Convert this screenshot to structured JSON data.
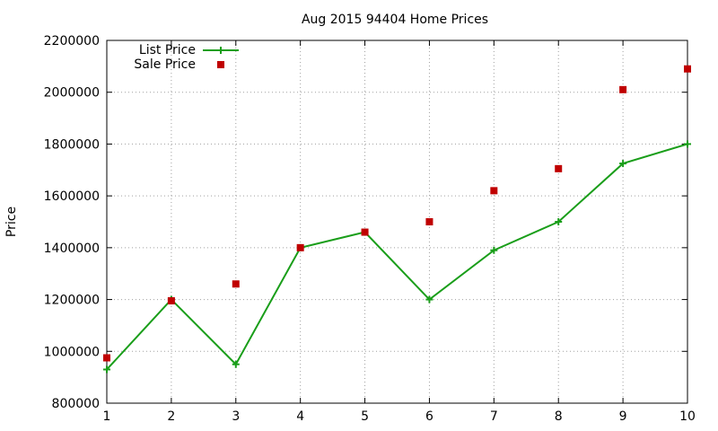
{
  "chart_data": {
    "type": "line",
    "title": "Aug 2015 94404 Home Prices",
    "xlabel": "",
    "ylabel": "Price",
    "x": [
      1,
      2,
      3,
      4,
      5,
      6,
      7,
      8,
      9,
      10
    ],
    "xlim": [
      1,
      10
    ],
    "ylim": [
      800000,
      2200000
    ],
    "xticks": [
      1,
      2,
      3,
      4,
      5,
      6,
      7,
      8,
      9,
      10
    ],
    "yticks": [
      800000,
      1000000,
      1200000,
      1400000,
      1600000,
      1800000,
      2000000,
      2200000
    ],
    "grid": true,
    "legend_position": "top-left",
    "series": [
      {
        "name": "List Price",
        "style": "line-with-plus-markers",
        "color": "#1a9e1a",
        "values": [
          930000,
          1200000,
          950000,
          1400000,
          1460000,
          1200000,
          1390000,
          1500000,
          1725000,
          1800000
        ]
      },
      {
        "name": "Sale Price",
        "style": "square-points",
        "color": "#c00000",
        "values": [
          975000,
          1195000,
          1260000,
          1400000,
          1460000,
          1500000,
          1620000,
          1705000,
          2010000,
          2090000
        ]
      }
    ]
  }
}
